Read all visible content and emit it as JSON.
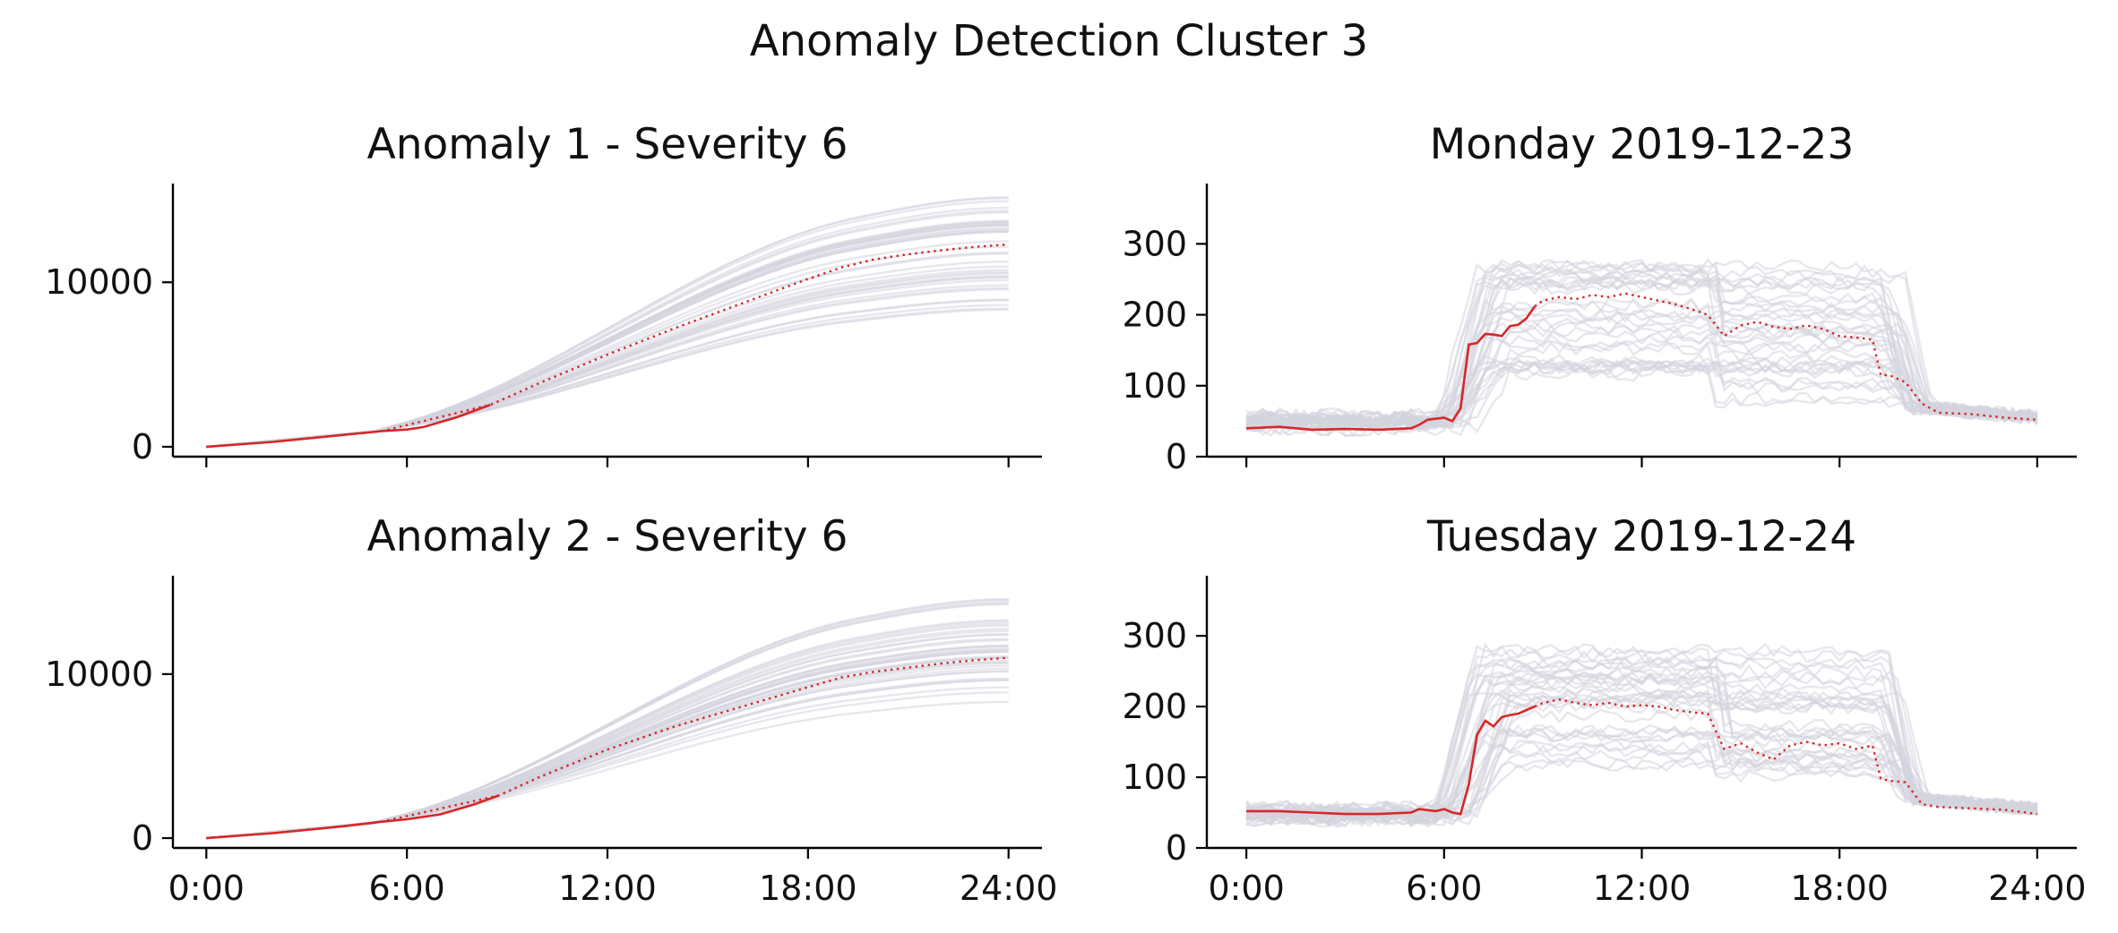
{
  "figure": {
    "title": "Anomaly Detection Cluster 3"
  },
  "colors": {
    "reference": "#d4d4de",
    "anomaly": "#d62728"
  },
  "chart_data": [
    {
      "type": "line",
      "title": "Anomaly 1 - Severity 6",
      "xlabel": "",
      "ylabel": "",
      "x_unit": "hour of day",
      "xlim": [
        -1,
        25
      ],
      "ylim": [
        -600,
        16000
      ],
      "x_ticks": [
        0,
        6,
        12,
        18,
        24
      ],
      "x_tick_labels": [],
      "y_ticks": [
        0,
        10000
      ],
      "y_tick_labels": [
        "0",
        "10000"
      ],
      "reference_band": {
        "description": "many light grey cumulative reference days",
        "count": 40,
        "end_values_range": [
          8200,
          15200
        ]
      },
      "series": [
        {
          "style": "solid",
          "x": [
            0,
            2,
            4,
            5.25,
            6,
            6.5,
            7.5,
            8.5
          ],
          "y": [
            0,
            300,
            700,
            950,
            1050,
            1200,
            1800,
            2550
          ]
        },
        {
          "style": "dotted",
          "x": [
            0,
            2,
            4,
            5.25,
            8.5,
            10,
            12,
            14,
            16,
            18,
            19,
            20,
            21,
            22,
            23,
            24
          ],
          "y": [
            0,
            300,
            700,
            950,
            2550,
            3900,
            5600,
            7200,
            8700,
            10200,
            10900,
            11400,
            11700,
            11950,
            12150,
            12300
          ]
        }
      ]
    },
    {
      "type": "line",
      "title": "Monday 2019-12-23",
      "xlabel": "",
      "ylabel": "",
      "x_unit": "hour of day",
      "xlim": [
        -1.2,
        25.2
      ],
      "ylim": [
        0,
        385
      ],
      "x_ticks": [
        0,
        6,
        12,
        18,
        24
      ],
      "x_tick_labels": [],
      "y_ticks": [
        0,
        100,
        200,
        300
      ],
      "y_tick_labels": [
        "0",
        "100",
        "200",
        "300"
      ],
      "reference_band": {
        "description": "many light grey daily profiles, night level ~40-60, day plateau ~120-280",
        "count": 36
      },
      "series": [
        {
          "style": "solid",
          "x": [
            0,
            1,
            2,
            3,
            4,
            5,
            5.25,
            5.5,
            6,
            6.25,
            6.5,
            6.75,
            7,
            7.25,
            7.5,
            7.75,
            8,
            8.25,
            8.5,
            8.75
          ],
          "y": [
            40,
            42,
            38,
            39,
            38,
            40,
            45,
            52,
            55,
            50,
            68,
            158,
            160,
            173,
            172,
            170,
            184,
            186,
            195,
            212
          ]
        },
        {
          "style": "dotted",
          "x": [
            8.75,
            9,
            9.5,
            10,
            10.5,
            11,
            11.5,
            12,
            12.5,
            13,
            13.5,
            14,
            14.5,
            15,
            15.5,
            16,
            16.5,
            17,
            17.5,
            18,
            18.5,
            19,
            19.25,
            19.5,
            20,
            20.5,
            21,
            22,
            23,
            24
          ],
          "y": [
            212,
            220,
            225,
            222,
            228,
            225,
            230,
            225,
            220,
            215,
            208,
            200,
            170,
            185,
            190,
            183,
            180,
            185,
            180,
            170,
            168,
            165,
            115,
            115,
            105,
            75,
            62,
            60,
            55,
            52
          ]
        }
      ]
    },
    {
      "type": "line",
      "title": "Anomaly 2 - Severity 6",
      "xlabel": "",
      "ylabel": "",
      "x_unit": "hour of day",
      "xlim": [
        -1,
        25
      ],
      "ylim": [
        -600,
        16000
      ],
      "x_ticks": [
        0,
        6,
        12,
        18,
        24
      ],
      "x_tick_labels": [
        "0:00",
        "6:00",
        "12:00",
        "18:00",
        "24:00"
      ],
      "y_ticks": [
        0,
        10000
      ],
      "y_tick_labels": [
        "0",
        "10000"
      ],
      "reference_band": {
        "description": "many light grey cumulative reference days",
        "count": 40,
        "end_values_range": [
          8200,
          15200
        ]
      },
      "series": [
        {
          "style": "solid",
          "x": [
            0,
            2,
            4,
            5.25,
            6,
            7,
            8,
            8.75
          ],
          "y": [
            0,
            300,
            700,
            1000,
            1150,
            1450,
            2050,
            2600
          ]
        },
        {
          "style": "dotted",
          "x": [
            0,
            2,
            4,
            5.25,
            8.75,
            10,
            12,
            14,
            16,
            18,
            19,
            20,
            21,
            22,
            23,
            24
          ],
          "y": [
            0,
            300,
            700,
            1000,
            2600,
            3750,
            5400,
            6800,
            8000,
            9200,
            9800,
            10150,
            10400,
            10650,
            10850,
            11000
          ]
        }
      ]
    },
    {
      "type": "line",
      "title": "Tuesday 2019-12-24",
      "xlabel": "",
      "ylabel": "",
      "x_unit": "hour of day",
      "xlim": [
        -1.2,
        25.2
      ],
      "ylim": [
        0,
        385
      ],
      "x_ticks": [
        0,
        6,
        12,
        18,
        24
      ],
      "x_tick_labels": [
        "0:00",
        "6:00",
        "12:00",
        "18:00",
        "24:00"
      ],
      "y_ticks": [
        0,
        100,
        200,
        300
      ],
      "y_tick_labels": [
        "0",
        "100",
        "200",
        "300"
      ],
      "reference_band": {
        "description": "many light grey daily profiles, night level ~40-60, day plateau ~120-280",
        "count": 36
      },
      "series": [
        {
          "style": "solid",
          "x": [
            0,
            1,
            2,
            3,
            4,
            5,
            5.25,
            5.75,
            6,
            6.25,
            6.5,
            6.75,
            7,
            7.25,
            7.5,
            7.75,
            8,
            8.25,
            8.5,
            8.75
          ],
          "y": [
            52,
            52,
            50,
            48,
            48,
            50,
            55,
            52,
            55,
            50,
            48,
            90,
            160,
            180,
            172,
            185,
            188,
            190,
            195,
            200
          ]
        },
        {
          "style": "dotted",
          "x": [
            8.75,
            9,
            9.5,
            10,
            10.5,
            11,
            11.5,
            12,
            12.5,
            13,
            13.5,
            14,
            14.5,
            15,
            15.5,
            16,
            16.5,
            17,
            17.5,
            18,
            18.5,
            19,
            19.25,
            19.5,
            20,
            20.5,
            21,
            22,
            23,
            24
          ],
          "y": [
            200,
            205,
            210,
            205,
            202,
            205,
            200,
            202,
            200,
            195,
            192,
            190,
            140,
            148,
            135,
            125,
            145,
            150,
            145,
            148,
            140,
            145,
            98,
            95,
            93,
            62,
            58,
            56,
            54,
            48
          ]
        }
      ]
    }
  ]
}
